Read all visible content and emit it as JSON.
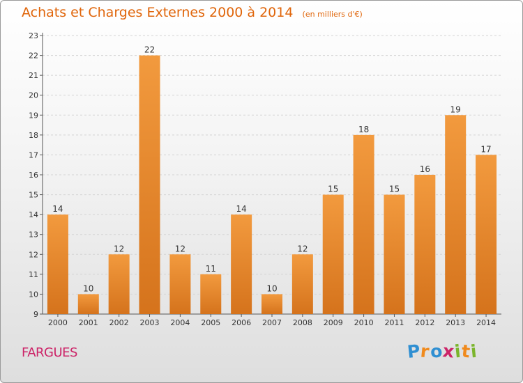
{
  "chart_data": {
    "type": "bar",
    "title": "Achats et Charges Externes 2000 à 2014",
    "unit_label": "(en milliers d'€)",
    "categories": [
      "2000",
      "2001",
      "2002",
      "2003",
      "2004",
      "2005",
      "2006",
      "2007",
      "2008",
      "2009",
      "2010",
      "2011",
      "2012",
      "2013",
      "2014"
    ],
    "values": [
      14,
      10,
      12,
      22,
      12,
      11,
      14,
      10,
      12,
      15,
      18,
      15,
      16,
      19,
      17
    ],
    "ylim": [
      9,
      23
    ],
    "yticks": [
      9,
      10,
      11,
      12,
      13,
      14,
      15,
      16,
      17,
      18,
      19,
      20,
      21,
      22,
      23
    ],
    "grid": true,
    "bar_color": "#f29a3e",
    "bar_color_dark": "#d5731c"
  },
  "location": "FARGUES",
  "brand": {
    "name": "Proxiti",
    "letters": [
      {
        "char": "P",
        "color": "#2f8fd2"
      },
      {
        "char": "r",
        "color": "#f08a1c"
      },
      {
        "char": "o",
        "color": "#2f8fd2"
      },
      {
        "char": "x",
        "color": "#cc2468"
      },
      {
        "char": "i",
        "color": "#7bb52c"
      },
      {
        "char": "t",
        "color": "#f08a1c"
      },
      {
        "char": "i",
        "color": "#7bb52c"
      }
    ]
  }
}
